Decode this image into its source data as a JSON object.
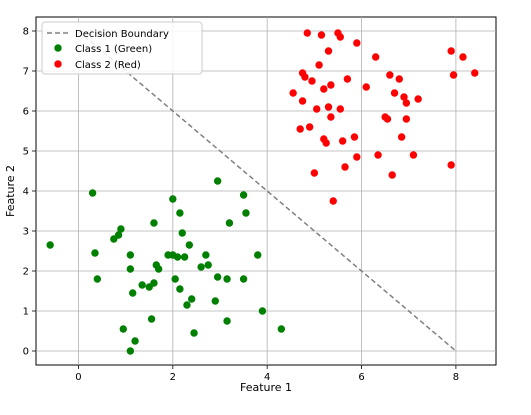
{
  "chart_data": {
    "type": "scatter",
    "title": "",
    "xlabel": "Feature 1",
    "ylabel": "Feature 2",
    "xlim": [
      -0.9,
      8.85
    ],
    "ylim": [
      -0.35,
      8.35
    ],
    "xticks": [
      0,
      2,
      4,
      6,
      8
    ],
    "yticks": [
      0,
      1,
      2,
      3,
      4,
      5,
      6,
      7,
      8
    ],
    "grid": true,
    "legend_position": "top-left",
    "decision_boundary": {
      "name": "Decision Boundary",
      "color": "#808080",
      "style": "dashed",
      "x": [
        0,
        8
      ],
      "y": [
        8,
        0
      ]
    },
    "series": [
      {
        "name": "Class 1 (Green)",
        "color": "#008000",
        "points": [
          [
            -0.6,
            2.65
          ],
          [
            0.3,
            3.95
          ],
          [
            0.35,
            2.45
          ],
          [
            0.4,
            1.8
          ],
          [
            0.75,
            2.8
          ],
          [
            0.85,
            2.9
          ],
          [
            0.9,
            3.05
          ],
          [
            0.95,
            0.55
          ],
          [
            1.1,
            2.4
          ],
          [
            1.1,
            2.05
          ],
          [
            1.15,
            1.45
          ],
          [
            1.2,
            0.25
          ],
          [
            1.1,
            0.0
          ],
          [
            1.35,
            1.65
          ],
          [
            1.5,
            1.6
          ],
          [
            1.55,
            0.8
          ],
          [
            1.6,
            3.2
          ],
          [
            1.6,
            1.7
          ],
          [
            1.65,
            2.15
          ],
          [
            1.7,
            2.05
          ],
          [
            1.9,
            2.4
          ],
          [
            2.0,
            2.4
          ],
          [
            2.0,
            3.8
          ],
          [
            2.05,
            1.8
          ],
          [
            2.1,
            2.35
          ],
          [
            2.15,
            3.45
          ],
          [
            2.15,
            1.55
          ],
          [
            2.2,
            2.95
          ],
          [
            2.25,
            2.35
          ],
          [
            2.3,
            1.15
          ],
          [
            2.35,
            2.65
          ],
          [
            2.4,
            1.3
          ],
          [
            2.45,
            0.45
          ],
          [
            2.6,
            2.1
          ],
          [
            2.7,
            2.4
          ],
          [
            2.75,
            2.15
          ],
          [
            2.9,
            1.25
          ],
          [
            2.95,
            1.85
          ],
          [
            2.95,
            4.25
          ],
          [
            3.15,
            0.75
          ],
          [
            3.15,
            1.8
          ],
          [
            3.2,
            3.2
          ],
          [
            3.5,
            1.8
          ],
          [
            3.5,
            3.9
          ],
          [
            3.55,
            3.45
          ],
          [
            3.8,
            2.4
          ],
          [
            3.9,
            1.0
          ],
          [
            4.3,
            0.55
          ]
        ]
      },
      {
        "name": "Class 2 (Red)",
        "color": "#ff0000",
        "points": [
          [
            4.55,
            6.45
          ],
          [
            4.7,
            5.55
          ],
          [
            4.75,
            6.95
          ],
          [
            4.75,
            6.25
          ],
          [
            4.8,
            6.85
          ],
          [
            4.85,
            7.95
          ],
          [
            4.9,
            5.6
          ],
          [
            4.95,
            6.75
          ],
          [
            5.0,
            4.45
          ],
          [
            5.05,
            6.05
          ],
          [
            5.1,
            7.15
          ],
          [
            5.15,
            7.9
          ],
          [
            5.2,
            6.55
          ],
          [
            5.2,
            5.3
          ],
          [
            5.25,
            5.2
          ],
          [
            5.3,
            7.5
          ],
          [
            5.3,
            6.1
          ],
          [
            5.35,
            6.65
          ],
          [
            5.35,
            5.85
          ],
          [
            5.4,
            3.75
          ],
          [
            5.5,
            7.95
          ],
          [
            5.55,
            7.85
          ],
          [
            5.55,
            6.05
          ],
          [
            5.6,
            5.25
          ],
          [
            5.65,
            4.6
          ],
          [
            5.7,
            6.8
          ],
          [
            5.85,
            5.35
          ],
          [
            5.9,
            7.7
          ],
          [
            5.9,
            4.85
          ],
          [
            6.1,
            6.6
          ],
          [
            6.3,
            7.35
          ],
          [
            6.35,
            4.9
          ],
          [
            6.5,
            5.85
          ],
          [
            6.55,
            5.8
          ],
          [
            6.6,
            6.9
          ],
          [
            6.65,
            4.4
          ],
          [
            6.7,
            6.45
          ],
          [
            6.8,
            6.8
          ],
          [
            6.85,
            5.35
          ],
          [
            6.9,
            6.35
          ],
          [
            6.95,
            6.2
          ],
          [
            6.95,
            5.8
          ],
          [
            7.1,
            4.9
          ],
          [
            7.2,
            6.3
          ],
          [
            7.9,
            7.5
          ],
          [
            7.9,
            4.65
          ],
          [
            7.95,
            6.9
          ],
          [
            8.15,
            7.35
          ],
          [
            8.4,
            6.95
          ]
        ]
      }
    ]
  }
}
